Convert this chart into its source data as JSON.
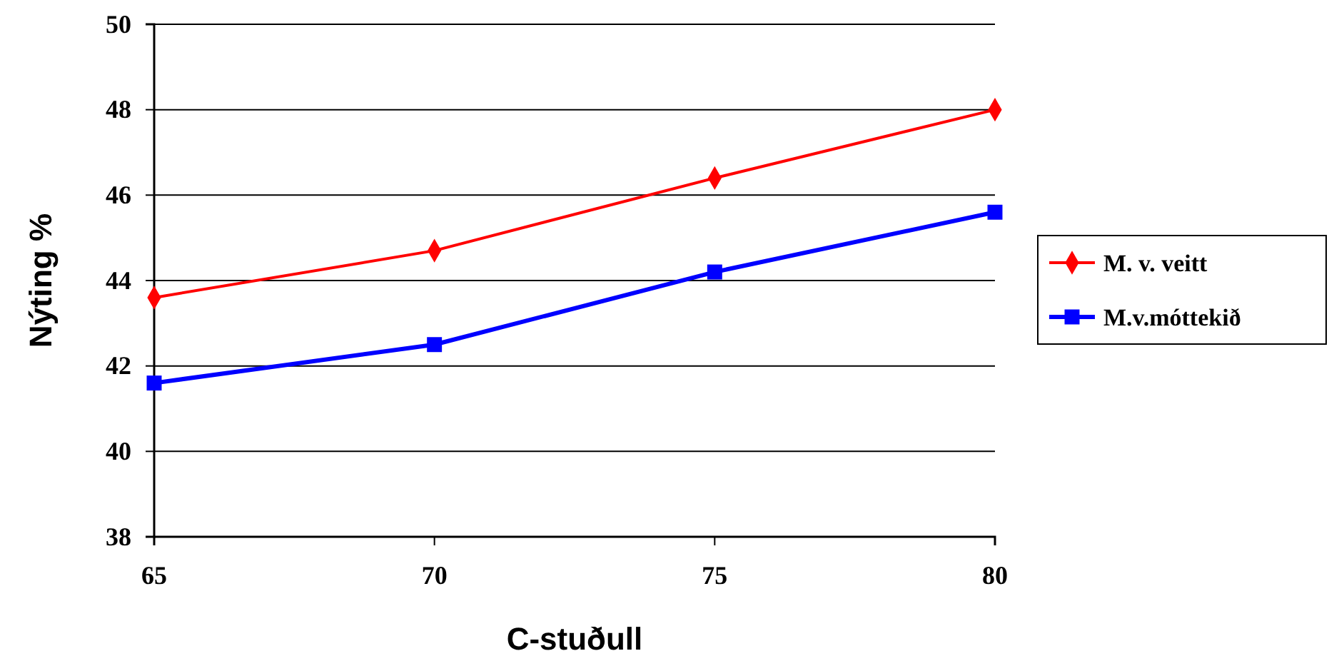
{
  "chart_data": {
    "type": "line",
    "xlabel": "C-stuðull",
    "ylabel": "Nýting %",
    "x": [
      65,
      70,
      75,
      80
    ],
    "xlim": [
      65,
      80
    ],
    "xticks": [
      65,
      70,
      75,
      80
    ],
    "ylim": [
      38,
      50
    ],
    "yticks": [
      38,
      40,
      42,
      44,
      46,
      48,
      50
    ],
    "grid": "y",
    "legend": "right",
    "series": [
      {
        "name": "M. v. veitt",
        "color": "#ff0000",
        "marker": "diamond",
        "values": [
          43.6,
          44.7,
          46.4,
          48.0
        ]
      },
      {
        "name": "M.v.móttekið",
        "color": "#0000ff",
        "marker": "square",
        "values": [
          41.6,
          42.5,
          44.2,
          45.6
        ]
      }
    ]
  }
}
